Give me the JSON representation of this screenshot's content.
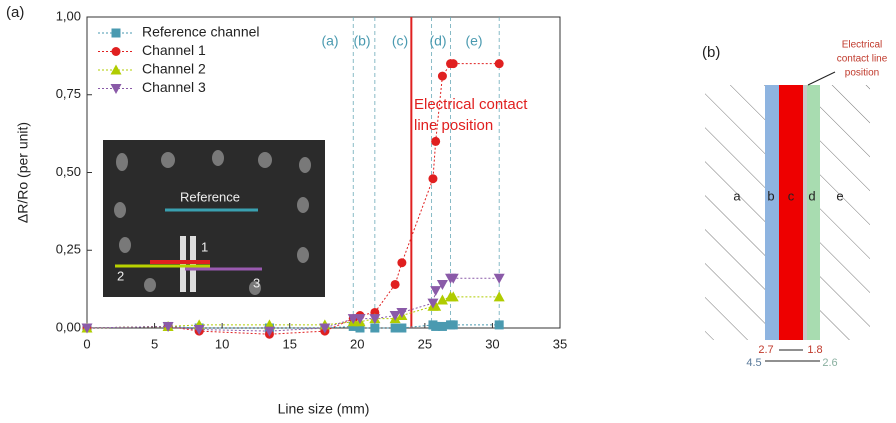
{
  "panel_label": "(a)",
  "chart_data": {
    "type": "line",
    "x_label": "Line size (mm)",
    "y_label": "ΔR/Ro (per unit)",
    "xlim": [
      0,
      35
    ],
    "xticks": [
      0,
      5,
      10,
      15,
      20,
      25,
      30,
      35
    ],
    "ylim": [
      0,
      1
    ],
    "yticks": [
      {
        "value": 0,
        "label": "0,00"
      },
      {
        "value": 0.25,
        "label": "0,25"
      },
      {
        "value": 0.5,
        "label": "0,50"
      },
      {
        "value": 0.75,
        "label": "0,75"
      },
      {
        "value": 1,
        "label": "1,00"
      }
    ],
    "x": [
      0,
      6,
      8.3,
      13.5,
      17.6,
      19.7,
      20.2,
      21.3,
      22.8,
      23.3,
      25.6,
      25.8,
      26.3,
      26.9,
      27.1,
      30.5
    ],
    "series": [
      {
        "name": "Reference channel",
        "color": "#4a9ab0",
        "marker": "square",
        "values": [
          0,
          0.005,
          0,
          0,
          0,
          0.005,
          0,
          0,
          0,
          0,
          0.01,
          0.005,
          0.005,
          0.01,
          0.01,
          0.01
        ]
      },
      {
        "name": "Channel 1",
        "color": "#e02020",
        "marker": "circle",
        "values": [
          0,
          0.005,
          -0.01,
          -0.02,
          -0.01,
          0.03,
          0.04,
          0.05,
          0.14,
          0.21,
          0.48,
          0.6,
          0.81,
          0.85,
          0.85,
          0.85
        ]
      },
      {
        "name": "Channel 2",
        "color": "#b0cc00",
        "marker": "triangle-up",
        "values": [
          0,
          0.005,
          0.01,
          0.01,
          0.01,
          0.02,
          0.02,
          0.03,
          0.03,
          0.04,
          0.07,
          0.07,
          0.09,
          0.1,
          0.1,
          0.1
        ]
      },
      {
        "name": "Channel 3",
        "color": "#8a5aa8",
        "marker": "triangle-down",
        "values": [
          0,
          0.005,
          -0.005,
          -0.01,
          0,
          0.03,
          0.03,
          0.03,
          0.04,
          0.05,
          0.08,
          0.12,
          0.14,
          0.16,
          0.16,
          0.16
        ]
      }
    ],
    "region_lines": [
      19.7,
      21.3,
      25.5,
      26.9,
      30.5
    ],
    "region_labels": [
      "(a)",
      "(b)",
      "(c)",
      "(d)",
      "(e)"
    ],
    "contact_line_x": 24,
    "contact_line_color": "#e02020",
    "contact_annotation": [
      "Electrical contact",
      "line position"
    ],
    "inset_labels": {
      "reference": "Reference",
      "ch1": "1",
      "ch2": "2",
      "ch3": "3"
    }
  },
  "diagram": {
    "panel_label": "(b)",
    "annotation": [
      "Electrical",
      "contact line",
      "position"
    ],
    "zones": [
      "a",
      "b",
      "c",
      "d",
      "e"
    ],
    "dimensions": [
      "2.7",
      "1.8",
      "4.5",
      "2.6"
    ]
  }
}
